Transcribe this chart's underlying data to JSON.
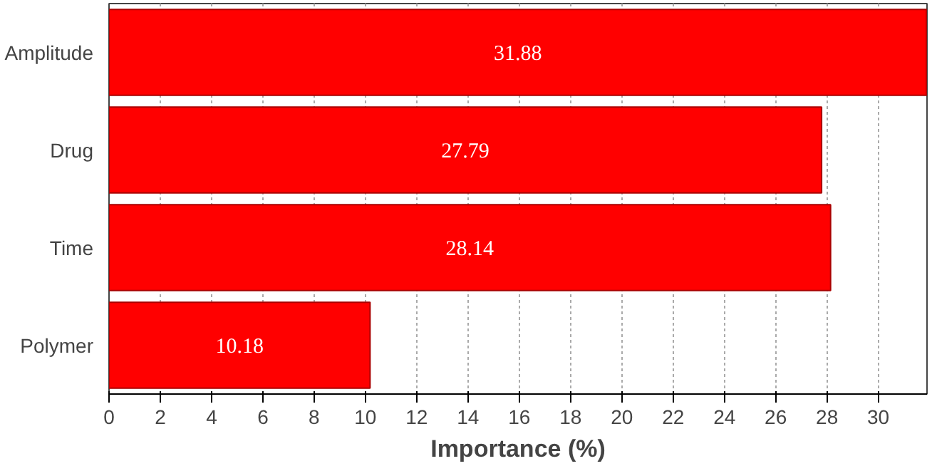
{
  "chart_data": {
    "type": "bar",
    "orientation": "horizontal",
    "xlabel": "Importance (%)",
    "categories": [
      "Amplitude",
      "Drug",
      "Time",
      "Polymer"
    ],
    "values": [
      31.88,
      27.79,
      28.14,
      10.18
    ],
    "color": "#ff0000",
    "xlim": [
      0,
      31.9
    ],
    "xticks": [
      0,
      2,
      4,
      6,
      8,
      10,
      12,
      14,
      16,
      18,
      20,
      22,
      24,
      26,
      28,
      30
    ],
    "grid": "x",
    "data_labels": true
  }
}
